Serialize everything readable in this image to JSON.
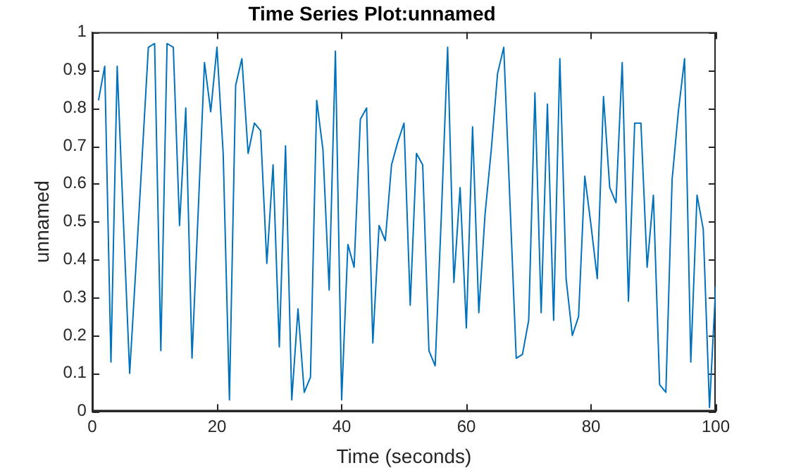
{
  "chart_data": {
    "type": "line",
    "title": "Time Series Plot:unnamed",
    "xlabel": "Time (seconds)",
    "ylabel": "unnamed",
    "x": [
      1,
      2,
      3,
      4,
      5,
      6,
      7,
      8,
      9,
      10,
      11,
      12,
      13,
      14,
      15,
      16,
      17,
      18,
      19,
      20,
      21,
      22,
      23,
      24,
      25,
      26,
      27,
      28,
      29,
      30,
      31,
      32,
      33,
      34,
      35,
      36,
      37,
      38,
      39,
      40,
      41,
      42,
      43,
      44,
      45,
      46,
      47,
      48,
      49,
      50,
      51,
      52,
      53,
      54,
      55,
      56,
      57,
      58,
      59,
      60,
      61,
      62,
      63,
      64,
      65,
      66,
      67,
      68,
      69,
      70,
      71,
      72,
      73,
      74,
      75,
      76,
      77,
      78,
      79,
      80,
      81,
      82,
      83,
      84,
      85,
      86,
      87,
      88,
      89,
      90,
      91,
      92,
      93,
      94,
      95,
      96,
      97,
      98,
      99,
      100
    ],
    "series": [
      {
        "color": "#0072bd",
        "values": [
          0.82,
          0.91,
          0.13,
          0.91,
          0.5,
          0.1,
          0.38,
          0.67,
          0.96,
          0.97,
          0.16,
          0.97,
          0.96,
          0.49,
          0.8,
          0.14,
          0.53,
          0.92,
          0.79,
          0.96,
          0.68,
          0.03,
          0.86,
          0.93,
          0.68,
          0.76,
          0.74,
          0.39,
          0.65,
          0.17,
          0.7,
          0.03,
          0.27,
          0.05,
          0.09,
          0.82,
          0.69,
          0.32,
          0.95,
          0.03,
          0.44,
          0.38,
          0.77,
          0.8,
          0.18,
          0.49,
          0.45,
          0.65,
          0.71,
          0.76,
          0.28,
          0.68,
          0.65,
          0.16,
          0.12,
          0.52,
          0.96,
          0.34,
          0.59,
          0.22,
          0.75,
          0.26,
          0.52,
          0.69,
          0.89,
          0.96,
          0.55,
          0.14,
          0.15,
          0.24,
          0.84,
          0.26,
          0.81,
          0.24,
          0.93,
          0.35,
          0.2,
          0.25,
          0.62,
          0.49,
          0.35,
          0.83,
          0.59,
          0.55,
          0.92,
          0.29,
          0.76,
          0.76,
          0.38,
          0.57,
          0.07,
          0.05,
          0.61,
          0.79,
          0.93,
          0.13,
          0.57,
          0.48,
          0.01,
          0.33
        ]
      }
    ],
    "xlim": [
      0,
      100
    ],
    "xticks": [
      0,
      20,
      40,
      60,
      80,
      100
    ],
    "ylim": [
      0,
      1
    ],
    "yticks": [
      0,
      0.1,
      0.2,
      0.3,
      0.4,
      0.5,
      0.6,
      0.7,
      0.8,
      0.9,
      1
    ],
    "grid": false,
    "legend": false,
    "marker": "none",
    "line_style": "solid"
  }
}
